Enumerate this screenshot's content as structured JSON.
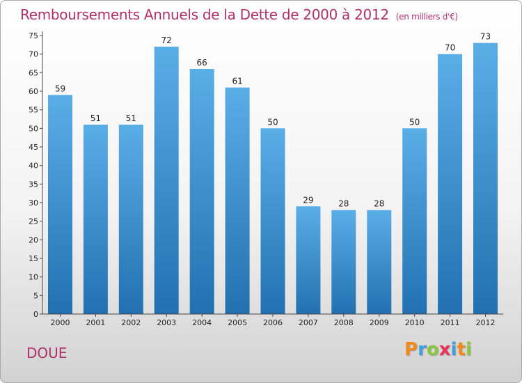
{
  "chart_data": {
    "type": "bar",
    "title": "Remboursements Annuels de la Dette de 2000 à 2012",
    "unit_note": "(en milliers d'€)",
    "xlabel": "",
    "ylabel": "",
    "categories": [
      "2000",
      "2001",
      "2002",
      "2003",
      "2004",
      "2005",
      "2006",
      "2007",
      "2008",
      "2009",
      "2010",
      "2011",
      "2012"
    ],
    "values": [
      59,
      51,
      51,
      72,
      66,
      61,
      50,
      29,
      28,
      28,
      50,
      70,
      73
    ],
    "ylim": [
      0,
      75
    ],
    "yticks": [
      0,
      5,
      10,
      15,
      20,
      25,
      30,
      35,
      40,
      45,
      50,
      55,
      60,
      65,
      70,
      75
    ],
    "grid": false,
    "bar_color_top": "#5aaee8",
    "bar_color_bottom": "#2270b0"
  },
  "commune": "DOUE",
  "logo": {
    "text": "Proxiti",
    "letters": [
      "P",
      "r",
      "o",
      "x",
      "i",
      "t",
      "i"
    ],
    "colors": [
      "#f08a1c",
      "#3f9fd8",
      "#8cc63f",
      "#e8325a",
      "#3f9fd8",
      "#f08a1c",
      "#8cc63f"
    ]
  },
  "colors": {
    "title": "#b0306a",
    "axis": "#444444"
  }
}
